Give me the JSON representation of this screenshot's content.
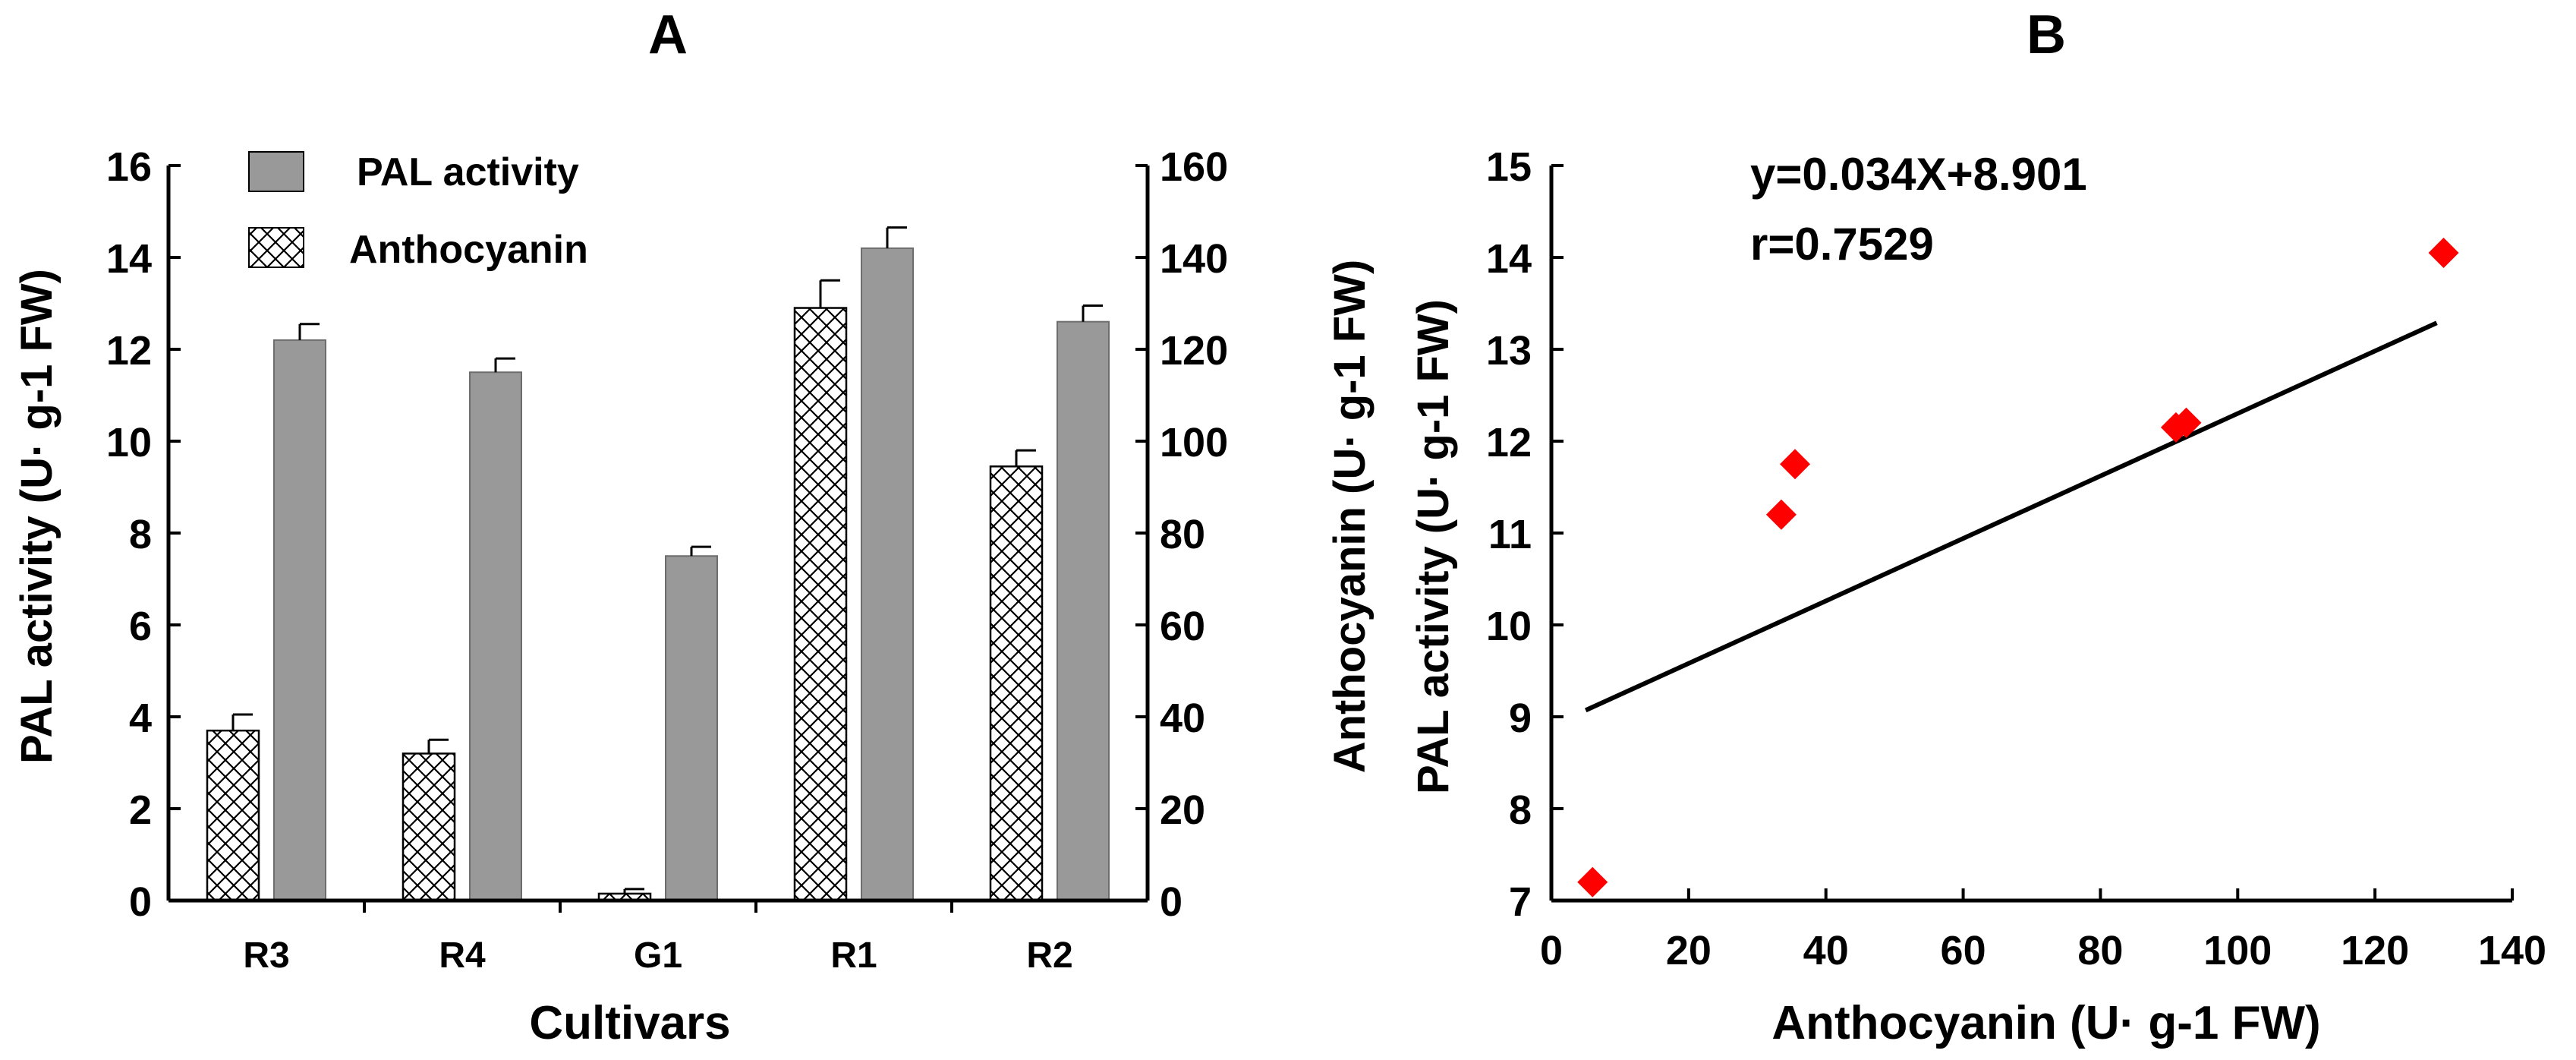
{
  "chart_data": [
    {
      "panel": "A",
      "type": "bar",
      "title": "A",
      "categories": [
        "R3",
        "R4",
        "G1",
        "R1",
        "R2"
      ],
      "xlabel": "Cultivars",
      "ylabel": "PAL activity (U· g-1 FW)",
      "y2label": "Anthocyanin (U· g-1 FW)",
      "ylim": [
        0,
        16
      ],
      "y2lim": [
        0,
        160
      ],
      "yticks": [
        0,
        2,
        4,
        6,
        8,
        10,
        12,
        14,
        16
      ],
      "y2ticks": [
        0,
        20,
        40,
        60,
        80,
        100,
        120,
        140,
        160
      ],
      "legend_position": "top-left",
      "series": [
        {
          "name": "Anthocyanin",
          "axis": "right",
          "fill": "crosshatch",
          "values": [
            37,
            32,
            1.5,
            129,
            94.5
          ],
          "errors": [
            3.5,
            3,
            1,
            6,
            3.5
          ]
        },
        {
          "name": "PAL activity",
          "axis": "left",
          "fill": "#999999",
          "values": [
            12.2,
            11.5,
            7.5,
            14.2,
            12.6
          ],
          "errors": [
            0.35,
            0.3,
            0.2,
            0.45,
            0.35
          ]
        }
      ],
      "legend": [
        {
          "label": "PAL activity",
          "series": "PAL activity"
        },
        {
          "label": "Anthocyanin",
          "series": "Anthocyanin"
        }
      ]
    },
    {
      "panel": "B",
      "type": "scatter",
      "title": "B",
      "xlabel": "Anthocyanin (U· g-1 FW)",
      "ylabel": "PAL activity (U· g-1 FW)",
      "xlim": [
        0,
        140
      ],
      "ylim": [
        7,
        15
      ],
      "xticks": [
        0,
        20,
        40,
        60,
        80,
        100,
        120,
        140
      ],
      "yticks": [
        7,
        8,
        9,
        10,
        11,
        12,
        13,
        14,
        15
      ],
      "points": [
        {
          "x": 6,
          "y": 7.2
        },
        {
          "x": 33.5,
          "y": 11.2
        },
        {
          "x": 35.5,
          "y": 11.75
        },
        {
          "x": 91,
          "y": 12.15
        },
        {
          "x": 92.5,
          "y": 12.2
        },
        {
          "x": 130,
          "y": 14.05
        }
      ],
      "point_color": "#ff0000",
      "fit_line": {
        "slope": 0.034,
        "intercept": 8.901,
        "x_start": 5,
        "x_end": 129
      },
      "annotations": [
        "y=0.034X+8.901",
        "r=0.7529"
      ]
    }
  ]
}
